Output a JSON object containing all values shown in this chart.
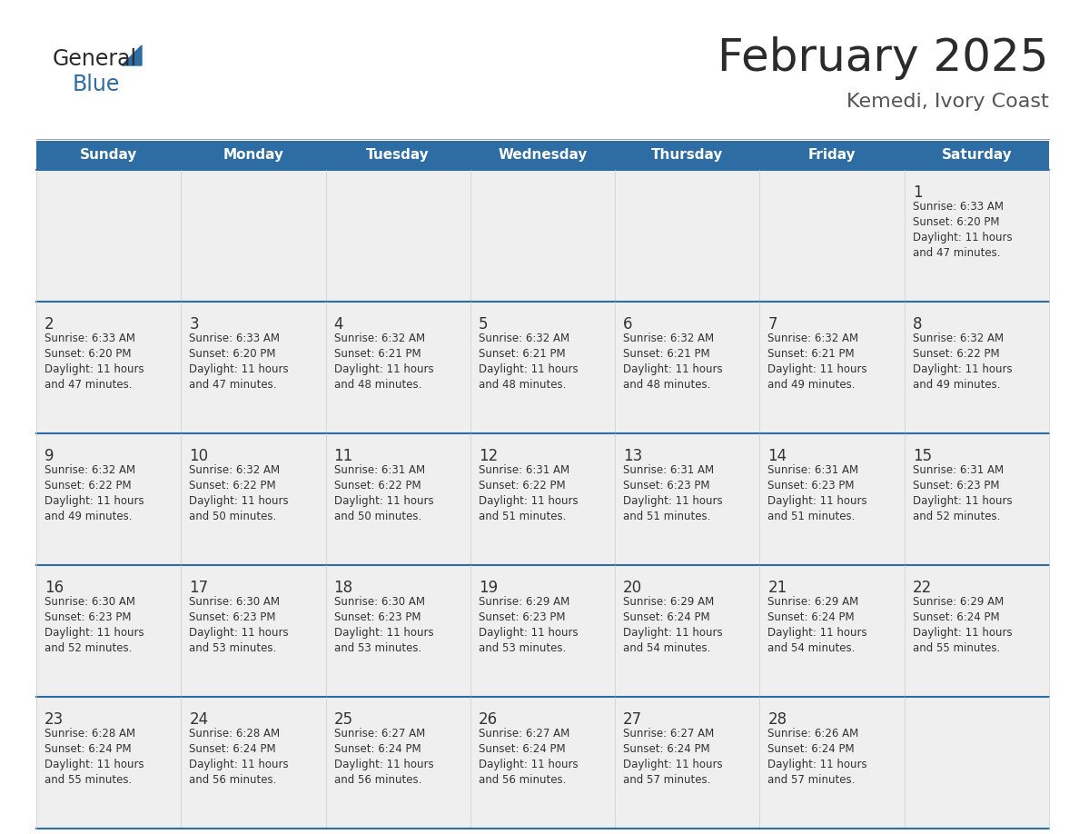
{
  "title": "February 2025",
  "subtitle": "Kemedi, Ivory Coast",
  "header_color": "#2E6DA4",
  "header_text_color": "#FFFFFF",
  "cell_bg_color": "#EFEFEF",
  "cell_bg_white": "#FFFFFF",
  "border_color": "#2E6DA4",
  "day_number_color": "#333333",
  "info_text_color": "#333333",
  "days_of_week": [
    "Sunday",
    "Monday",
    "Tuesday",
    "Wednesday",
    "Thursday",
    "Friday",
    "Saturday"
  ],
  "calendar_data": [
    [
      null,
      null,
      null,
      null,
      null,
      null,
      {
        "day": 1,
        "sunrise": "6:33 AM",
        "sunset": "6:20 PM",
        "daylight": "11 hours and 47 minutes."
      }
    ],
    [
      {
        "day": 2,
        "sunrise": "6:33 AM",
        "sunset": "6:20 PM",
        "daylight": "11 hours and 47 minutes."
      },
      {
        "day": 3,
        "sunrise": "6:33 AM",
        "sunset": "6:20 PM",
        "daylight": "11 hours and 47 minutes."
      },
      {
        "day": 4,
        "sunrise": "6:32 AM",
        "sunset": "6:21 PM",
        "daylight": "11 hours and 48 minutes."
      },
      {
        "day": 5,
        "sunrise": "6:32 AM",
        "sunset": "6:21 PM",
        "daylight": "11 hours and 48 minutes."
      },
      {
        "day": 6,
        "sunrise": "6:32 AM",
        "sunset": "6:21 PM",
        "daylight": "11 hours and 48 minutes."
      },
      {
        "day": 7,
        "sunrise": "6:32 AM",
        "sunset": "6:21 PM",
        "daylight": "11 hours and 49 minutes."
      },
      {
        "day": 8,
        "sunrise": "6:32 AM",
        "sunset": "6:22 PM",
        "daylight": "11 hours and 49 minutes."
      }
    ],
    [
      {
        "day": 9,
        "sunrise": "6:32 AM",
        "sunset": "6:22 PM",
        "daylight": "11 hours and 49 minutes."
      },
      {
        "day": 10,
        "sunrise": "6:32 AM",
        "sunset": "6:22 PM",
        "daylight": "11 hours and 50 minutes."
      },
      {
        "day": 11,
        "sunrise": "6:31 AM",
        "sunset": "6:22 PM",
        "daylight": "11 hours and 50 minutes."
      },
      {
        "day": 12,
        "sunrise": "6:31 AM",
        "sunset": "6:22 PM",
        "daylight": "11 hours and 51 minutes."
      },
      {
        "day": 13,
        "sunrise": "6:31 AM",
        "sunset": "6:23 PM",
        "daylight": "11 hours and 51 minutes."
      },
      {
        "day": 14,
        "sunrise": "6:31 AM",
        "sunset": "6:23 PM",
        "daylight": "11 hours and 51 minutes."
      },
      {
        "day": 15,
        "sunrise": "6:31 AM",
        "sunset": "6:23 PM",
        "daylight": "11 hours and 52 minutes."
      }
    ],
    [
      {
        "day": 16,
        "sunrise": "6:30 AM",
        "sunset": "6:23 PM",
        "daylight": "11 hours and 52 minutes."
      },
      {
        "day": 17,
        "sunrise": "6:30 AM",
        "sunset": "6:23 PM",
        "daylight": "11 hours and 53 minutes."
      },
      {
        "day": 18,
        "sunrise": "6:30 AM",
        "sunset": "6:23 PM",
        "daylight": "11 hours and 53 minutes."
      },
      {
        "day": 19,
        "sunrise": "6:29 AM",
        "sunset": "6:23 PM",
        "daylight": "11 hours and 53 minutes."
      },
      {
        "day": 20,
        "sunrise": "6:29 AM",
        "sunset": "6:24 PM",
        "daylight": "11 hours and 54 minutes."
      },
      {
        "day": 21,
        "sunrise": "6:29 AM",
        "sunset": "6:24 PM",
        "daylight": "11 hours and 54 minutes."
      },
      {
        "day": 22,
        "sunrise": "6:29 AM",
        "sunset": "6:24 PM",
        "daylight": "11 hours and 55 minutes."
      }
    ],
    [
      {
        "day": 23,
        "sunrise": "6:28 AM",
        "sunset": "6:24 PM",
        "daylight": "11 hours and 55 minutes."
      },
      {
        "day": 24,
        "sunrise": "6:28 AM",
        "sunset": "6:24 PM",
        "daylight": "11 hours and 56 minutes."
      },
      {
        "day": 25,
        "sunrise": "6:27 AM",
        "sunset": "6:24 PM",
        "daylight": "11 hours and 56 minutes."
      },
      {
        "day": 26,
        "sunrise": "6:27 AM",
        "sunset": "6:24 PM",
        "daylight": "11 hours and 56 minutes."
      },
      {
        "day": 27,
        "sunrise": "6:27 AM",
        "sunset": "6:24 PM",
        "daylight": "11 hours and 57 minutes."
      },
      {
        "day": 28,
        "sunrise": "6:26 AM",
        "sunset": "6:24 PM",
        "daylight": "11 hours and 57 minutes."
      },
      null
    ]
  ]
}
